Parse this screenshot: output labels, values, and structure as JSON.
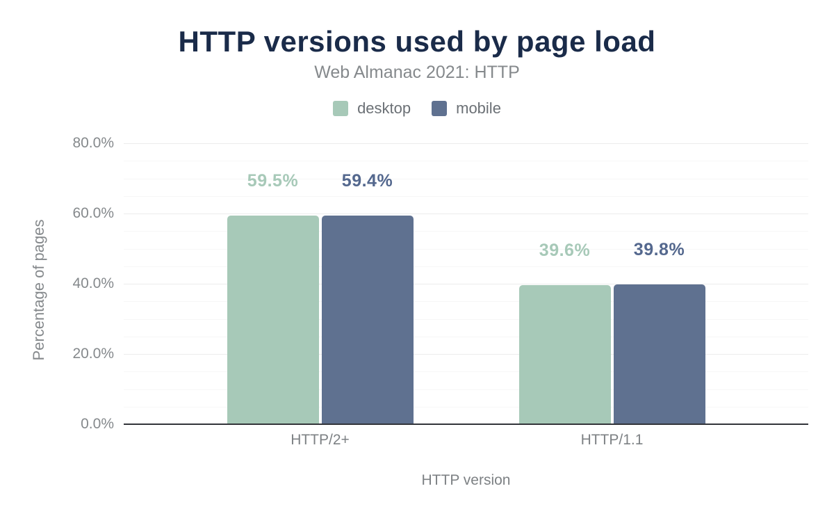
{
  "chart_data": {
    "type": "bar",
    "title": "HTTP versions used by page load",
    "subtitle": "Web Almanac 2021: HTTP",
    "xlabel": "HTTP version",
    "ylabel": "Percentage of pages",
    "categories": [
      "HTTP/2+",
      "HTTP/1.1"
    ],
    "series": [
      {
        "name": "desktop",
        "color": "#a7c9b8",
        "label_color": "#a7c9b8",
        "values": [
          59.5,
          39.6
        ],
        "labels": [
          "59.5%",
          "39.6%"
        ]
      },
      {
        "name": "mobile",
        "color": "#5f7190",
        "label_color": "#54688e",
        "values": [
          59.4,
          39.8
        ],
        "labels": [
          "59.4%",
          "39.8%"
        ]
      }
    ],
    "ylim": [
      0,
      80
    ],
    "yticks": [
      {
        "value": 0,
        "label": "0.0%"
      },
      {
        "value": 20,
        "label": "20.0%"
      },
      {
        "value": 40,
        "label": "40.0%"
      },
      {
        "value": 60,
        "label": "60.0%"
      },
      {
        "value": 80,
        "label": "80.0%"
      }
    ],
    "grid": {
      "major_step": 20,
      "minor_step": 5,
      "visible": true
    },
    "legend_position": "top",
    "background_color": "#ffffff",
    "title_color": "#1a2b49",
    "axis_text_color": "#85898c"
  }
}
